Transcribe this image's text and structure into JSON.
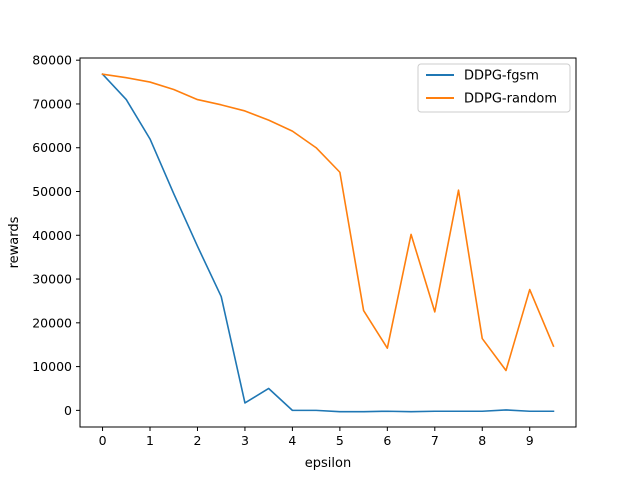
{
  "chart_data": {
    "type": "line",
    "xlabel": "epsilon",
    "ylabel": "rewards",
    "xlim": [
      -0.475,
      9.975
    ],
    "ylim": [
      -3800,
      80500
    ],
    "xticks": [
      0,
      1,
      2,
      3,
      4,
      5,
      6,
      7,
      8,
      9
    ],
    "yticks": [
      0,
      10000,
      20000,
      30000,
      40000,
      50000,
      60000,
      70000,
      80000
    ],
    "grid": false,
    "legend_position": "top-right",
    "x": [
      0,
      0.5,
      1,
      1.5,
      2,
      2.5,
      3,
      3.5,
      4,
      4.5,
      5,
      5.5,
      6,
      6.5,
      7,
      7.5,
      8,
      8.5,
      9,
      9.5
    ],
    "series": [
      {
        "name": "DDPG-fgsm",
        "color": "#1f77b4",
        "values": [
          76800,
          71000,
          62000,
          49500,
          37500,
          26000,
          1700,
          5000,
          0,
          0,
          -300,
          -300,
          -200,
          -300,
          -200,
          -200,
          -200,
          100,
          -200,
          -200
        ]
      },
      {
        "name": "DDPG-random",
        "color": "#ff7f0e",
        "values": [
          76800,
          76000,
          75000,
          73300,
          71000,
          69800,
          68400,
          66300,
          63800,
          60000,
          54400,
          22800,
          14200,
          40200,
          22500,
          50300,
          16400,
          9100,
          27600,
          14700
        ]
      }
    ]
  }
}
